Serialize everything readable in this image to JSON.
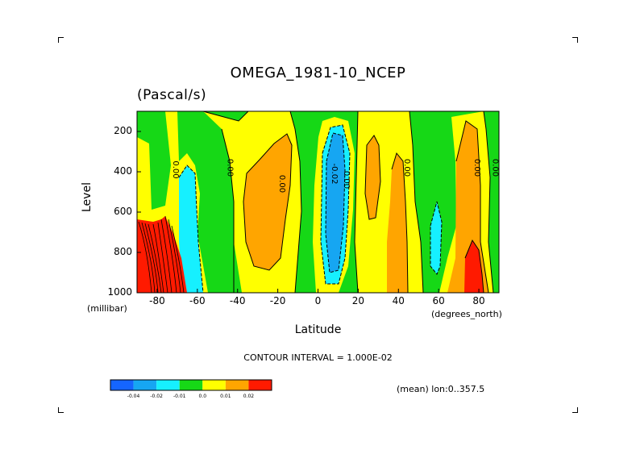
{
  "chart": {
    "title": "OMEGA_1981-10_NCEP",
    "units": "(Pascal/s)",
    "ylabel": "Level",
    "xlabel": "Latitude",
    "ylabel_unit": "(millibar)",
    "xlabel_unit": "(degrees_north)",
    "contour_note": "CONTOUR INTERVAL = 1.000E-02",
    "mean_note": "(mean) lon:0..357.5"
  },
  "chart_data": {
    "type": "heatmap",
    "title": "OMEGA_1981-10_NCEP",
    "subtitle": "(Pascal/s)",
    "xlabel": "Latitude",
    "ylabel": "Level",
    "x_unit": "degrees_north",
    "y_unit": "millibar",
    "xlim": [
      -90,
      90
    ],
    "ylim": [
      1000,
      100
    ],
    "x_ticks": [
      "-80",
      "-60",
      "-40",
      "-20",
      "0",
      "20",
      "40",
      "60",
      "80"
    ],
    "y_ticks": [
      "200",
      "400",
      "600",
      "800",
      "1000"
    ],
    "contour_interval": 0.01,
    "contour_labels": [
      "0.00",
      "0.00",
      "0.00",
      "-0.02",
      "0.00",
      "0.00",
      "0.00",
      "0.00"
    ],
    "colorbar": {
      "labels": [
        "-0.04",
        "-0.02",
        "-0.01",
        "0.0",
        "0.01",
        "0.02"
      ],
      "colors": [
        "#1565ff",
        "#16a6f2",
        "#16f0ff",
        "#16d816",
        "#ffff00",
        "#ffa500",
        "#ff1a00"
      ]
    },
    "regions": [
      {
        "name": "green-background",
        "level": "-0.01..0.0",
        "color": "#16d816"
      },
      {
        "name": "red-south-polar",
        "lat": [
          -90,
          -68
        ],
        "lev": [
          600,
          1000
        ],
        "level": ">0.02",
        "color": "#ff1a00"
      },
      {
        "name": "cyan-south",
        "lat": [
          -70,
          -60
        ],
        "lev": [
          360,
          1000
        ],
        "level": "-0.02..-0.01",
        "color": "#16f0ff"
      },
      {
        "name": "orange-southern-subtropics",
        "lat": [
          -36,
          -14
        ],
        "lev": [
          230,
          870
        ],
        "level": "0.01..0.02",
        "color": "#ffa500"
      },
      {
        "name": "blue-tropics",
        "lat": [
          3,
          18
        ],
        "lev": [
          180,
          960
        ],
        "level": "<-0.04..-0.02",
        "color": "#1565ff"
      },
      {
        "name": "orange-north-25",
        "lat": [
          22,
          30
        ],
        "lev": [
          200,
          640
        ],
        "level": "0.01..0.02",
        "color": "#ffa500"
      },
      {
        "name": "orange-north-40",
        "lat": [
          32,
          45
        ],
        "lev": [
          300,
          1000
        ],
        "level": "0.01..0.02",
        "color": "#ffa500"
      },
      {
        "name": "cyan-north-60",
        "lat": [
          56,
          62
        ],
        "lev": [
          560,
          1000
        ],
        "level": "-0.02..-0.01",
        "color": "#16f0ff"
      },
      {
        "name": "red-north-80",
        "lat": [
          74,
          84
        ],
        "lev": [
          720,
          1000
        ],
        "level": ">0.02",
        "color": "#ff1a00"
      }
    ]
  },
  "colorbar_labels": [
    "-0.04",
    "-0.02",
    "-0.01",
    "0.0",
    "0.01",
    "0.02"
  ]
}
